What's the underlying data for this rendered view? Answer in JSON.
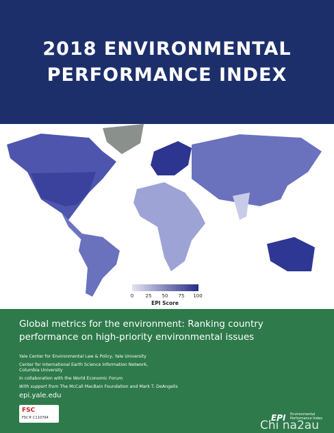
{
  "header": {
    "title_lines": [
      "2018 ENVIRONMENTAL",
      "PERFORMANCE INDEX"
    ]
  },
  "legend": {
    "ticks": [
      0,
      25,
      50,
      75,
      100
    ],
    "label": "EPI Score"
  },
  "footer": {
    "heading_lines": [
      "Global metrics for the environment: Ranking country",
      "performance on high-priority environmental issues"
    ],
    "affiliations": [
      "Yale Center for Environmental Law & Policy, Yale University",
      "Center for International Earth Science Information Network, Columbia University",
      "In collaboration with the World Economic Forum"
    ],
    "support": {
      "prefix": "With support from",
      "text": "The McCall MacBain Foundation and Mark T. DeAngelis"
    },
    "url": "epi.yale.edu",
    "logos": {
      "fsc": "FSC",
      "fsc_code": "FSC® C110794",
      "epi": "EPI",
      "epi_text": "Environmental Performance Index"
    },
    "watermark": "Chi na2au"
  }
}
